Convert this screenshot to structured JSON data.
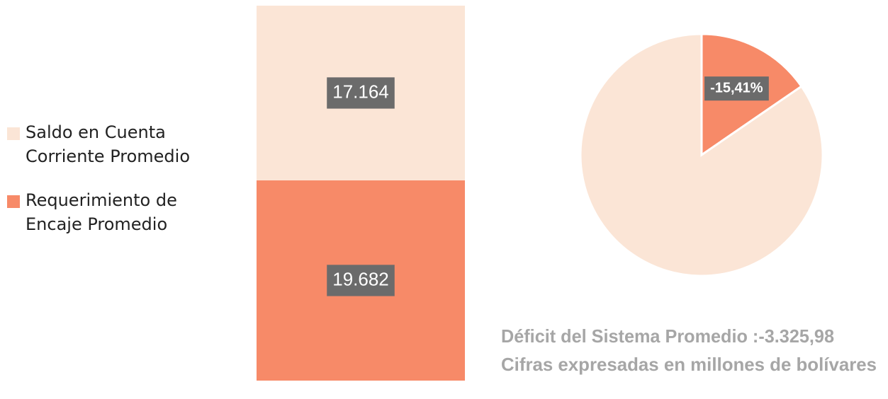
{
  "chart_data": [
    {
      "type": "stacked-bar",
      "series": [
        {
          "name": "Saldo en Cuenta Corriente Promedio",
          "color": "#FBE5D6",
          "values": [
            17164
          ],
          "value_labels": [
            "17.164"
          ]
        },
        {
          "name": "Requerimiento de Encaje Promedio",
          "color": "#F78A68",
          "values": [
            19682
          ],
          "value_labels": [
            "19.682"
          ]
        }
      ]
    },
    {
      "type": "pie",
      "values": [
        -15.41,
        84.59
      ],
      "value_labels": [
        "-15,41%",
        null
      ],
      "colors": [
        "#F78A68",
        "#FBE5D6"
      ],
      "annotations": [
        "Déficit del Sistema Promedio :-3.325,98",
        "Cifras expresadas en millones de bolívares"
      ]
    }
  ]
}
